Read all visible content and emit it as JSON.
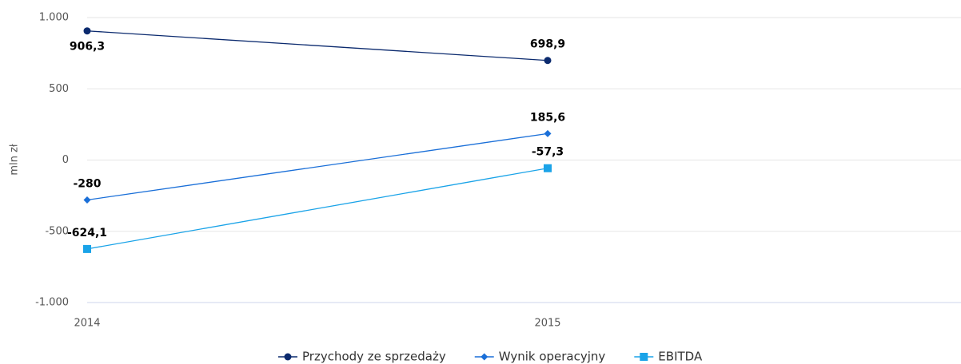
{
  "chart_data": {
    "type": "line",
    "y_label": "mln zł",
    "categories": [
      "2014",
      "2015"
    ],
    "series": [
      {
        "name": "Przychody ze sprzedaży",
        "color": "#0b2a6e",
        "marker": "circle",
        "values": [
          906.3,
          698.9
        ],
        "value_labels": [
          "906,3",
          "698,9"
        ]
      },
      {
        "name": "Wynik operacyjny",
        "color": "#1a6fd8",
        "marker": "diamond",
        "values": [
          -280,
          185.6
        ],
        "value_labels": [
          "-280",
          "185,6"
        ]
      },
      {
        "name": "EBITDA",
        "color": "#1aa3e8",
        "marker": "square",
        "values": [
          -624.1,
          -57.3
        ],
        "value_labels": [
          "-624,1",
          "-57,3"
        ]
      }
    ],
    "ylim": [
      -1000,
      1000
    ],
    "yticks": [
      {
        "value": -1000,
        "label": "-1.000"
      },
      {
        "value": -500,
        "label": "-500"
      },
      0,
      500,
      {
        "value": 1000,
        "label": "1.000"
      }
    ],
    "grid": true,
    "legend": "bottom"
  }
}
